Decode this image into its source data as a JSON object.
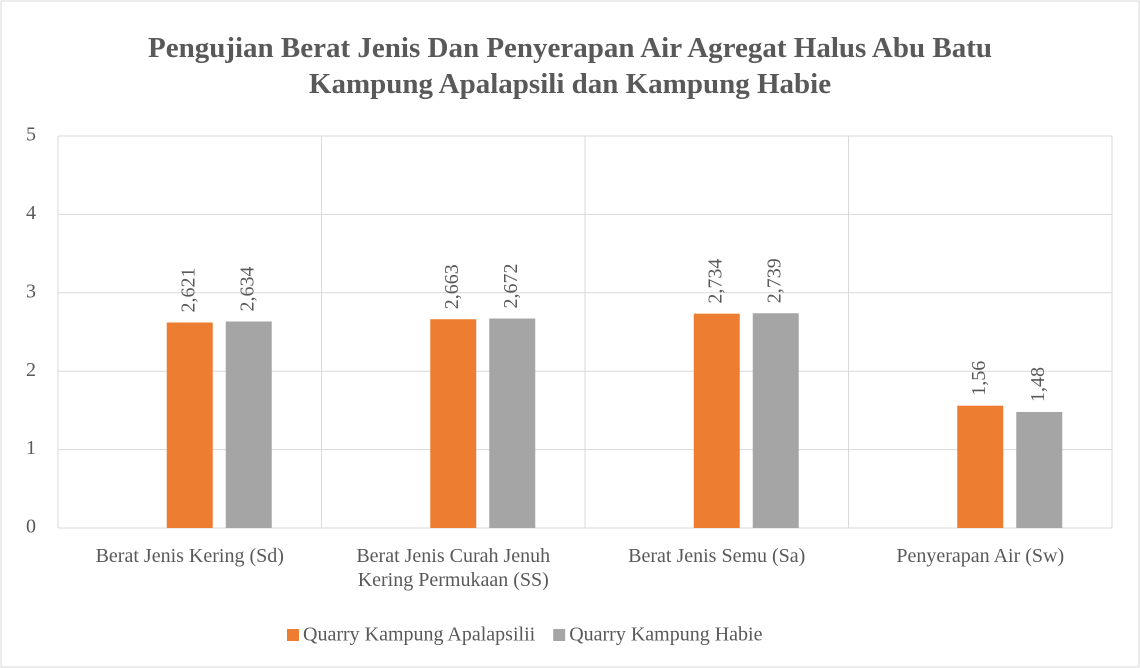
{
  "chart_data": {
    "type": "bar",
    "title": "Pengujian Berat Jenis Dan Penyerapan Air Agregat Halus Abu Batu Kampung Apalapsili dan Kampung Habie",
    "categories": [
      "Berat Jenis Kering (Sd)",
      "Berat Jenis Curah Jenuh Kering Permukaan (SS)",
      "Berat Jenis Semu (Sa)",
      "Penyerapan Air (Sw)"
    ],
    "series": [
      {
        "name": "Quarry Kampung Apalapsilii",
        "color": "#ed7d31",
        "values": [
          2.621,
          2.663,
          2.734,
          1.56
        ],
        "value_labels": [
          "2,621",
          "2,663",
          "2,734",
          "1,56"
        ]
      },
      {
        "name": "Quarry Kampung Habie",
        "color": "#a5a5a5",
        "values": [
          2.634,
          2.672,
          2.739,
          1.48
        ],
        "value_labels": [
          "2,634",
          "2,672",
          "2,739",
          "1,48"
        ]
      }
    ],
    "ylim": [
      0,
      5
    ],
    "yticks": [
      0,
      1,
      2,
      3,
      4,
      5
    ],
    "grid": true,
    "legend": "bottom"
  }
}
